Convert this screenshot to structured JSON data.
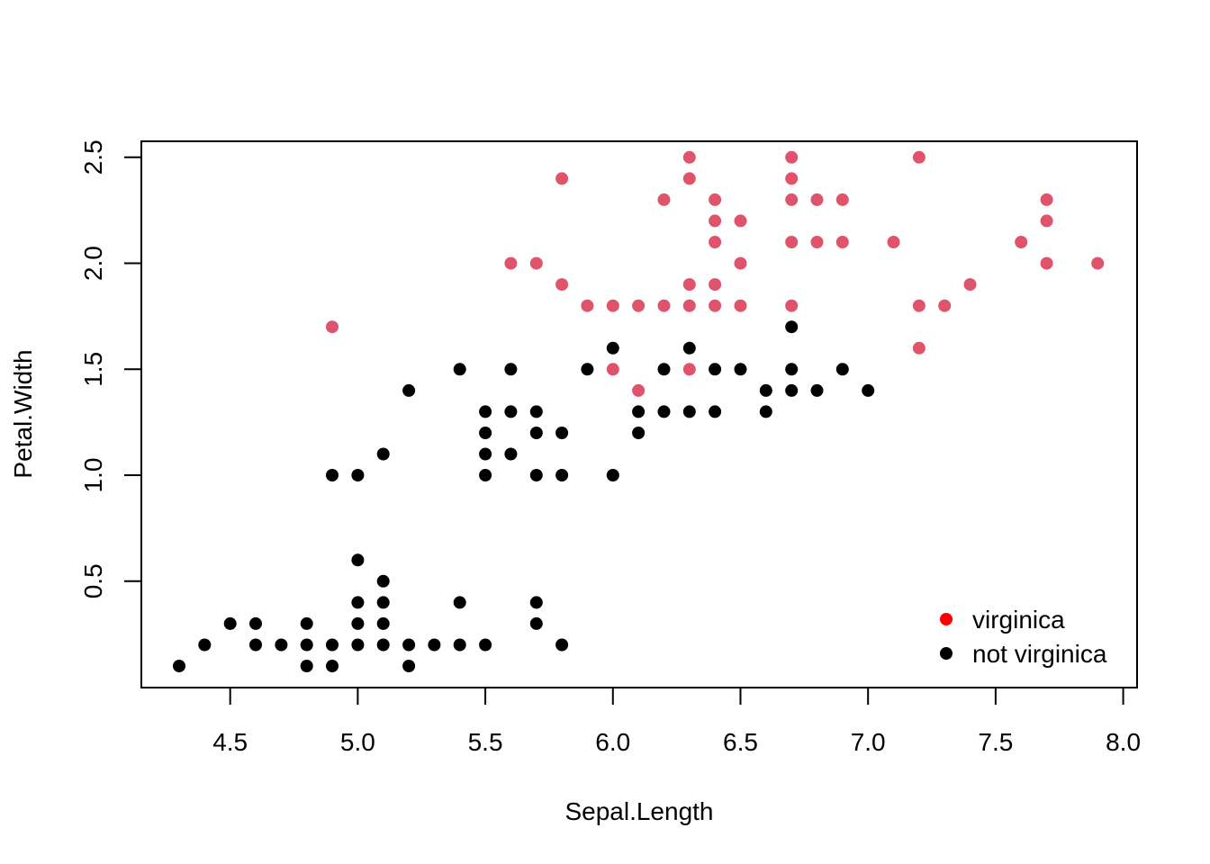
{
  "chart_data": {
    "type": "scatter",
    "xlabel": "Sepal.Length",
    "ylabel": "Petal.Width",
    "xlim": [
      4.3,
      7.9
    ],
    "ylim": [
      0.1,
      2.5
    ],
    "x_ticks": [
      "4.5",
      "5.0",
      "5.5",
      "6.0",
      "6.5",
      "7.0",
      "7.5",
      "8.0"
    ],
    "y_ticks": [
      "0.5",
      "1.0",
      "1.5",
      "2.0",
      "2.5"
    ],
    "grid": false,
    "legend_position": "bottom-right",
    "legend": [
      {
        "label": "virginica",
        "color": "#ff0000"
      },
      {
        "label": "not virginica",
        "color": "#000000"
      }
    ],
    "series": [
      {
        "name": "not virginica",
        "color": "#000000",
        "points": [
          [
            4.3,
            0.1
          ],
          [
            4.4,
            0.2
          ],
          [
            4.5,
            0.3
          ],
          [
            4.6,
            0.3
          ],
          [
            4.6,
            0.2
          ],
          [
            4.7,
            0.2
          ],
          [
            4.8,
            0.3
          ],
          [
            4.8,
            0.2
          ],
          [
            4.8,
            0.1
          ],
          [
            4.9,
            0.2
          ],
          [
            4.9,
            0.1
          ],
          [
            4.9,
            1.0
          ],
          [
            5.0,
            0.6
          ],
          [
            5.0,
            0.4
          ],
          [
            5.0,
            0.3
          ],
          [
            5.0,
            0.2
          ],
          [
            5.0,
            1.0
          ],
          [
            5.1,
            0.5
          ],
          [
            5.1,
            0.4
          ],
          [
            5.1,
            0.3
          ],
          [
            5.1,
            0.2
          ],
          [
            5.1,
            1.1
          ],
          [
            5.2,
            0.2
          ],
          [
            5.2,
            0.1
          ],
          [
            5.2,
            1.4
          ],
          [
            5.3,
            0.2
          ],
          [
            5.4,
            0.4
          ],
          [
            5.4,
            0.2
          ],
          [
            5.4,
            1.5
          ],
          [
            5.5,
            0.2
          ],
          [
            5.5,
            1.0
          ],
          [
            5.5,
            1.1
          ],
          [
            5.5,
            1.2
          ],
          [
            5.5,
            1.3
          ],
          [
            5.6,
            1.1
          ],
          [
            5.6,
            1.3
          ],
          [
            5.6,
            1.5
          ],
          [
            5.7,
            0.4
          ],
          [
            5.7,
            0.3
          ],
          [
            5.7,
            1.0
          ],
          [
            5.7,
            1.2
          ],
          [
            5.7,
            1.3
          ],
          [
            5.8,
            0.2
          ],
          [
            5.8,
            1.0
          ],
          [
            5.8,
            1.2
          ],
          [
            5.9,
            1.5
          ],
          [
            6.0,
            1.0
          ],
          [
            6.0,
            1.6
          ],
          [
            6.1,
            1.2
          ],
          [
            6.1,
            1.3
          ],
          [
            6.2,
            1.3
          ],
          [
            6.2,
            1.5
          ],
          [
            6.3,
            1.3
          ],
          [
            6.3,
            1.6
          ],
          [
            6.4,
            1.3
          ],
          [
            6.4,
            1.5
          ],
          [
            6.5,
            1.5
          ],
          [
            6.6,
            1.3
          ],
          [
            6.6,
            1.4
          ],
          [
            6.7,
            1.4
          ],
          [
            6.7,
            1.5
          ],
          [
            6.7,
            1.7
          ],
          [
            6.8,
            1.4
          ],
          [
            6.9,
            1.5
          ],
          [
            7.0,
            1.4
          ]
        ]
      },
      {
        "name": "virginica",
        "color": "#df536b",
        "points": [
          [
            4.9,
            1.7
          ],
          [
            5.6,
            2.0
          ],
          [
            5.7,
            2.0
          ],
          [
            5.8,
            2.4
          ],
          [
            5.8,
            1.9
          ],
          [
            5.9,
            1.8
          ],
          [
            6.0,
            1.8
          ],
          [
            6.0,
            1.5
          ],
          [
            6.1,
            1.8
          ],
          [
            6.1,
            1.4
          ],
          [
            6.2,
            2.3
          ],
          [
            6.2,
            1.8
          ],
          [
            6.3,
            2.5
          ],
          [
            6.3,
            2.4
          ],
          [
            6.3,
            1.9
          ],
          [
            6.3,
            1.8
          ],
          [
            6.3,
            1.5
          ],
          [
            6.4,
            2.3
          ],
          [
            6.4,
            2.2
          ],
          [
            6.4,
            2.1
          ],
          [
            6.4,
            1.9
          ],
          [
            6.4,
            1.8
          ],
          [
            6.5,
            2.2
          ],
          [
            6.5,
            2.0
          ],
          [
            6.5,
            1.8
          ],
          [
            6.7,
            2.5
          ],
          [
            6.7,
            2.4
          ],
          [
            6.7,
            2.3
          ],
          [
            6.7,
            2.1
          ],
          [
            6.7,
            1.8
          ],
          [
            6.8,
            2.3
          ],
          [
            6.8,
            2.1
          ],
          [
            6.9,
            2.3
          ],
          [
            6.9,
            2.1
          ],
          [
            7.1,
            2.1
          ],
          [
            7.2,
            2.5
          ],
          [
            7.2,
            1.8
          ],
          [
            7.2,
            1.6
          ],
          [
            7.3,
            1.8
          ],
          [
            7.4,
            1.9
          ],
          [
            7.6,
            2.1
          ],
          [
            7.7,
            2.3
          ],
          [
            7.7,
            2.2
          ],
          [
            7.7,
            2.0
          ],
          [
            7.9,
            2.0
          ]
        ]
      }
    ]
  }
}
